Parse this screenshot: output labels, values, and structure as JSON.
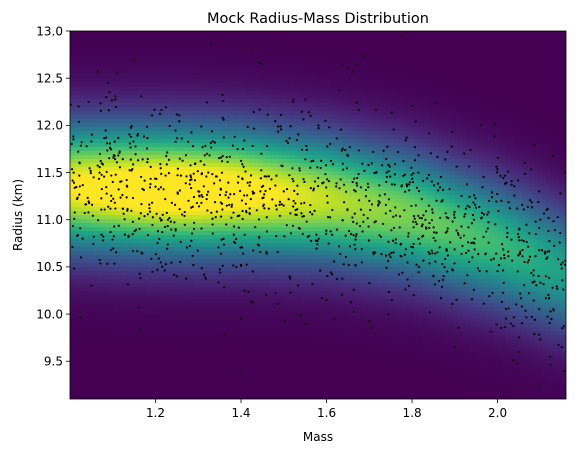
{
  "chart_data": {
    "type": "scatter",
    "subtype": "scatter-over-density-heatmap",
    "title": "Mock Radius-Mass Distribution",
    "xlabel": "Mass",
    "ylabel": "Radius (km)",
    "xlim": [
      1.0,
      2.16
    ],
    "ylim": [
      9.1,
      13.0
    ],
    "xticks": [
      "1.2",
      "1.4",
      "1.6",
      "1.8",
      "2.0"
    ],
    "xtick_values": [
      1.2,
      1.4,
      1.6,
      1.8,
      2.0
    ],
    "yticks": [
      "9.5",
      "10.0",
      "10.5",
      "11.0",
      "11.5",
      "12.0",
      "12.5",
      "13.0"
    ],
    "ytick_values": [
      9.5,
      10.0,
      10.5,
      11.0,
      11.5,
      12.0,
      12.5,
      13.0
    ],
    "grid": false,
    "colormap": "viridis",
    "colormap_stops": [
      "#440154",
      "#482475",
      "#414487",
      "#355f8d",
      "#2a788e",
      "#21918c",
      "#22a884",
      "#44bf70",
      "#7ad151",
      "#bddf26",
      "#fde725"
    ],
    "density_ridge": {
      "description": "Radius ridge of the density distribution versus mass",
      "mass": [
        1.0,
        1.2,
        1.4,
        1.6,
        1.8,
        2.0,
        2.16
      ],
      "radius": [
        11.35,
        11.32,
        11.3,
        11.22,
        11.05,
        10.75,
        10.45
      ],
      "spread_km": 0.45
    },
    "points": {
      "color": "#000000",
      "count_estimate": 1200,
      "sample_mass": [
        1.02,
        1.05,
        1.1,
        1.15,
        1.2,
        1.25,
        1.3,
        1.4,
        1.45,
        1.5,
        1.6,
        1.65,
        1.7,
        1.78,
        1.85,
        1.9,
        1.98,
        2.05,
        2.1,
        2.15
      ],
      "sample_radius": [
        12.2,
        10.3,
        11.4,
        12.7,
        11.35,
        10.4,
        11.3,
        9.95,
        12.65,
        11.3,
        10.15,
        12.6,
        11.2,
        12.95,
        10.4,
        9.65,
        11.2,
        9.6,
        11.0,
        9.65
      ]
    }
  }
}
